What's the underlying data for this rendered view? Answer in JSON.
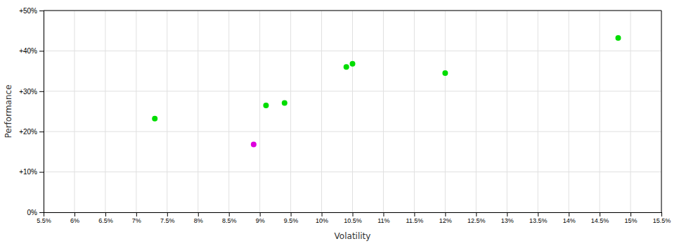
{
  "chart_data": {
    "type": "scatter",
    "xlabel": "Volatility",
    "ylabel": "Performance",
    "xlim": [
      0.055,
      0.155
    ],
    "xticks": [
      {
        "value": 0.055,
        "label": "5.5%"
      },
      {
        "value": 0.06,
        "label": "6%"
      },
      {
        "value": 0.065,
        "label": "6.5%"
      },
      {
        "value": 0.07,
        "label": "7%"
      },
      {
        "value": 0.075,
        "label": "7.5%"
      },
      {
        "value": 0.08,
        "label": "8%"
      },
      {
        "value": 0.085,
        "label": "8.5%"
      },
      {
        "value": 0.09,
        "label": "9%"
      },
      {
        "value": 0.095,
        "label": "9.5%"
      },
      {
        "value": 0.1,
        "label": "10%"
      },
      {
        "value": 0.105,
        "label": "10.5%"
      },
      {
        "value": 0.11,
        "label": "11%"
      },
      {
        "value": 0.115,
        "label": "11.5%"
      },
      {
        "value": 0.12,
        "label": "12%"
      },
      {
        "value": 0.125,
        "label": "12.5%"
      },
      {
        "value": 0.13,
        "label": "13%"
      },
      {
        "value": 0.135,
        "label": "13.5%"
      },
      {
        "value": 0.14,
        "label": "14%"
      },
      {
        "value": 0.145,
        "label": "14.5%"
      },
      {
        "value": 0.15,
        "label": "15%"
      },
      {
        "value": 0.155,
        "label": "15.5%"
      }
    ],
    "ylim": [
      0.0,
      0.5
    ],
    "yticks": [
      {
        "value": 0.0,
        "label": "0%"
      },
      {
        "value": 0.1,
        "label": "+10%"
      },
      {
        "value": 0.2,
        "label": "+20%"
      },
      {
        "value": 0.3,
        "label": "+30%"
      },
      {
        "value": 0.4,
        "label": "+40%"
      },
      {
        "value": 0.5,
        "label": "+50%"
      }
    ],
    "grid": true,
    "series": [
      {
        "color": "#00dd00",
        "x": [
          0.073,
          0.091,
          0.094,
          0.104,
          0.105,
          0.12,
          0.148
        ],
        "values": [
          0.232,
          0.265,
          0.271,
          0.36,
          0.368,
          0.345,
          0.432
        ]
      },
      {
        "color": "#dd00dd",
        "x": [
          0.089
        ],
        "values": [
          0.168
        ]
      }
    ]
  }
}
